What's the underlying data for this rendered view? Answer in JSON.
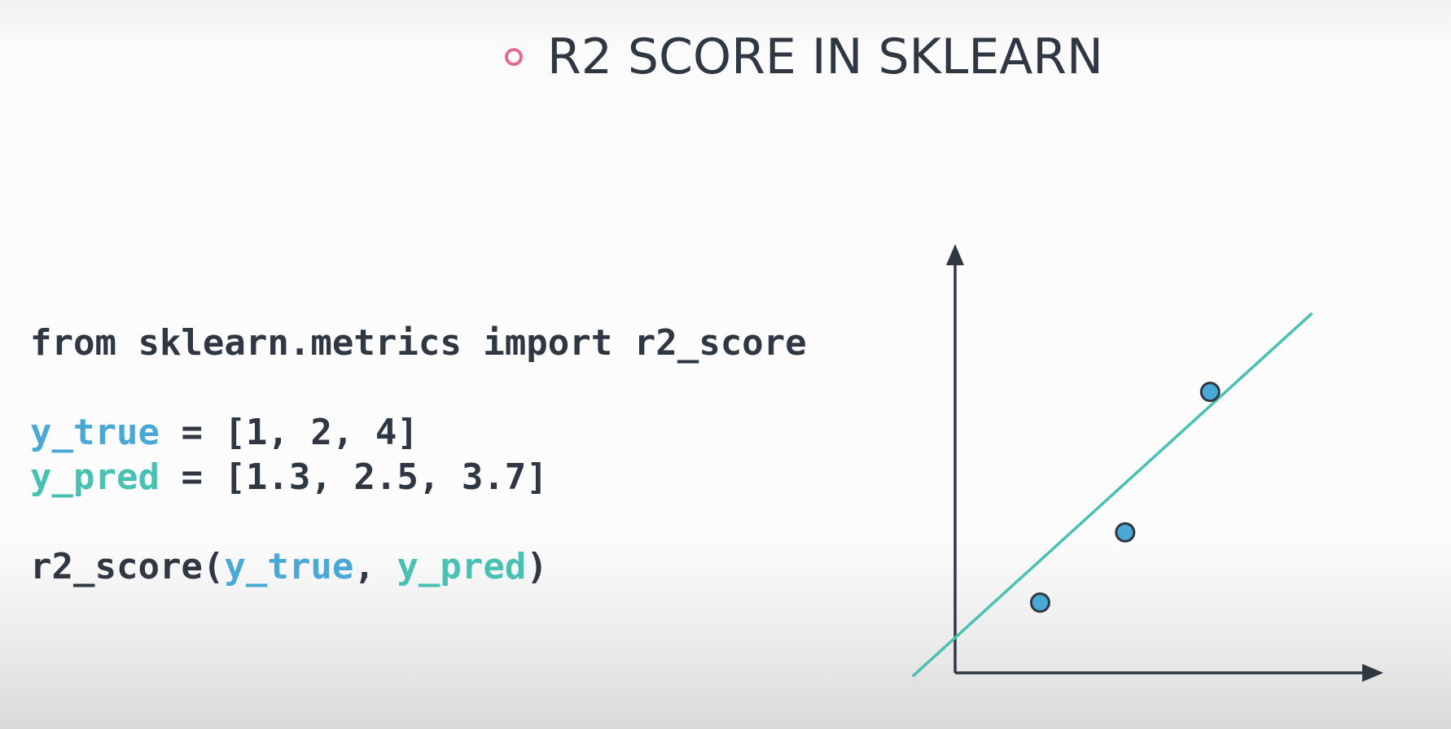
{
  "title": {
    "text": "R2 SCORE IN SKLEARN",
    "bullet_color": "#e06b95"
  },
  "code": {
    "import_line": "from sklearn.metrics import r2_score",
    "y_true_name": "y_true",
    "y_true_rest": " = [1, 2, 4]",
    "y_pred_name": "y_pred",
    "y_pred_rest": " = [1.3, 2.5, 3.7]",
    "call_prefix": "r2_score(",
    "call_arg1": "y_true",
    "call_sep": ", ",
    "call_arg2": "y_pred",
    "call_suffix": ")"
  },
  "colors": {
    "text": "#2f3742",
    "y_true": "#4aa8d6",
    "y_pred": "#48c1b3",
    "point_fill": "#4aa8d6",
    "axis": "#2f3742"
  },
  "chart_data": {
    "type": "scatter",
    "title": "",
    "xlabel": "",
    "ylabel": "",
    "points": [
      {
        "x": 1,
        "y": 1
      },
      {
        "x": 2,
        "y": 2
      },
      {
        "x": 3,
        "y": 4
      }
    ],
    "fit_line": {
      "from": {
        "x": 0.0,
        "y": 0.5
      },
      "to": {
        "x": 4.0,
        "y": 4.9
      }
    },
    "xlim": [
      0,
      5
    ],
    "ylim": [
      0,
      6
    ],
    "grid": false
  }
}
